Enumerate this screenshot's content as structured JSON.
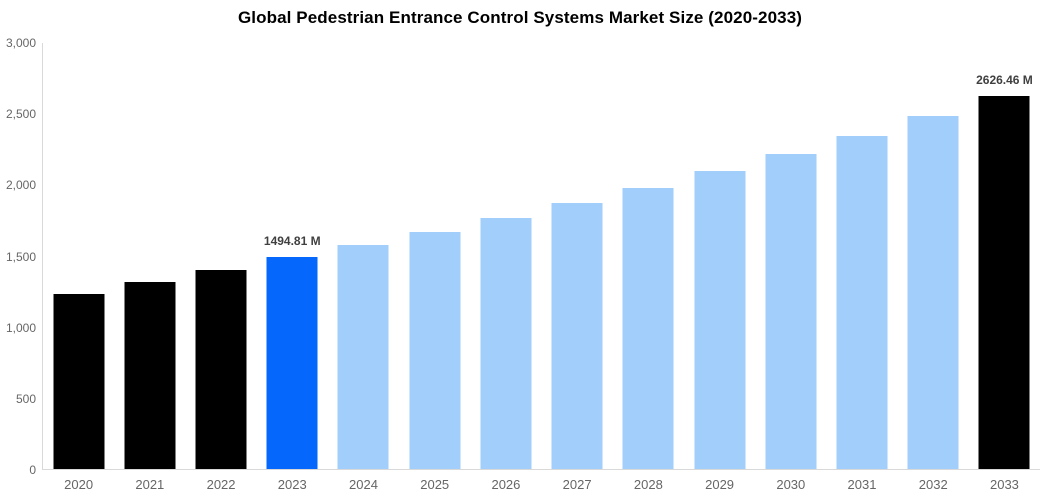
{
  "chart_data": {
    "type": "bar",
    "title": "Global Pedestrian Entrance Control Systems Market Size (2020-2033)",
    "xlabel": "",
    "ylabel": "",
    "unit": "M",
    "ylim": [
      0,
      3000
    ],
    "grid": false,
    "legend": "none",
    "categories": [
      "2020",
      "2021",
      "2022",
      "2023",
      "2024",
      "2025",
      "2026",
      "2027",
      "2028",
      "2029",
      "2030",
      "2031",
      "2032",
      "2033"
    ],
    "values": [
      1230,
      1319,
      1400,
      1494.81,
      1580,
      1672,
      1770,
      1873,
      1982,
      2097,
      2220,
      2348,
      2485,
      2626.46
    ],
    "bar_colors": [
      "#000000",
      "#000000",
      "#000000",
      "#0667FD",
      "#A1CEFA",
      "#A1CEFA",
      "#A1CEFA",
      "#A1CEFA",
      "#A1CEFA",
      "#A1CEFA",
      "#A1CEFA",
      "#A1CEFA",
      "#A1CEFA",
      "#000000"
    ],
    "value_labels": [
      "",
      "",
      "",
      "1494.81 M",
      "",
      "",
      "",
      "",
      "",
      "",
      "",
      "",
      "",
      "2626.46 M"
    ],
    "yticks": [
      {
        "value": 0,
        "label": "0"
      },
      {
        "value": 500,
        "label": "500"
      },
      {
        "value": 1000,
        "label": "1,000"
      },
      {
        "value": 1500,
        "label": "1,500"
      },
      {
        "value": 2000,
        "label": "2,000"
      },
      {
        "value": 2500,
        "label": "2,500"
      },
      {
        "value": 3000,
        "label": "3,000"
      }
    ],
    "colors": {
      "historic_bar": "#000000",
      "highlight_bar": "#0667FD",
      "forecast_bar": "#A1CEFA",
      "axis_line": "#d9d9d9",
      "tick_text": "#666666",
      "value_label_text": "#404040",
      "title_text": "#000000"
    }
  }
}
